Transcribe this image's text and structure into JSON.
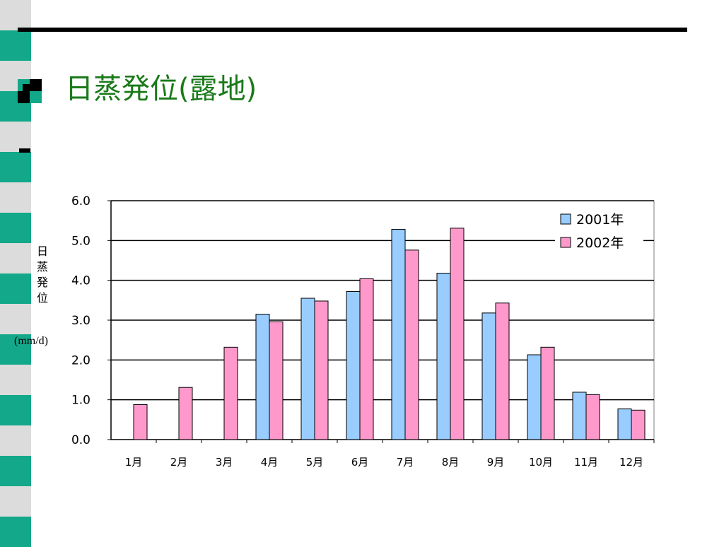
{
  "slide": {
    "title": "日蒸発位(露地)",
    "ylabel_chars": [
      "日",
      "蒸",
      "発",
      "位"
    ],
    "ylabel_unit": "(mm/d)"
  },
  "colors": {
    "stripe_green": "#13a889",
    "stripe_gray": "#dcdcdc",
    "title_green": "#1a7a1a",
    "bar_2001": "#99ccff",
    "bar_2002": "#ff99cc"
  },
  "chart_data": {
    "type": "bar",
    "categories": [
      "1月",
      "2月",
      "3月",
      "4月",
      "5月",
      "6月",
      "7月",
      "8月",
      "9月",
      "10月",
      "11月",
      "12月"
    ],
    "series": [
      {
        "name": "2001年",
        "values": [
          null,
          null,
          null,
          3.15,
          3.55,
          3.72,
          5.28,
          4.18,
          3.18,
          2.13,
          1.19,
          0.77
        ]
      },
      {
        "name": "2002年",
        "values": [
          0.88,
          1.31,
          2.32,
          2.96,
          3.48,
          4.04,
          4.76,
          5.31,
          3.43,
          2.32,
          1.13,
          0.74
        ]
      }
    ],
    "title": "",
    "xlabel": "",
    "ylabel": "日蒸発位(mm/d)",
    "ylim": [
      0,
      6
    ],
    "yticks": [
      "0.0",
      "1.0",
      "2.0",
      "3.0",
      "4.0",
      "5.0",
      "6.0"
    ],
    "grid": true,
    "legend": "top-right"
  }
}
